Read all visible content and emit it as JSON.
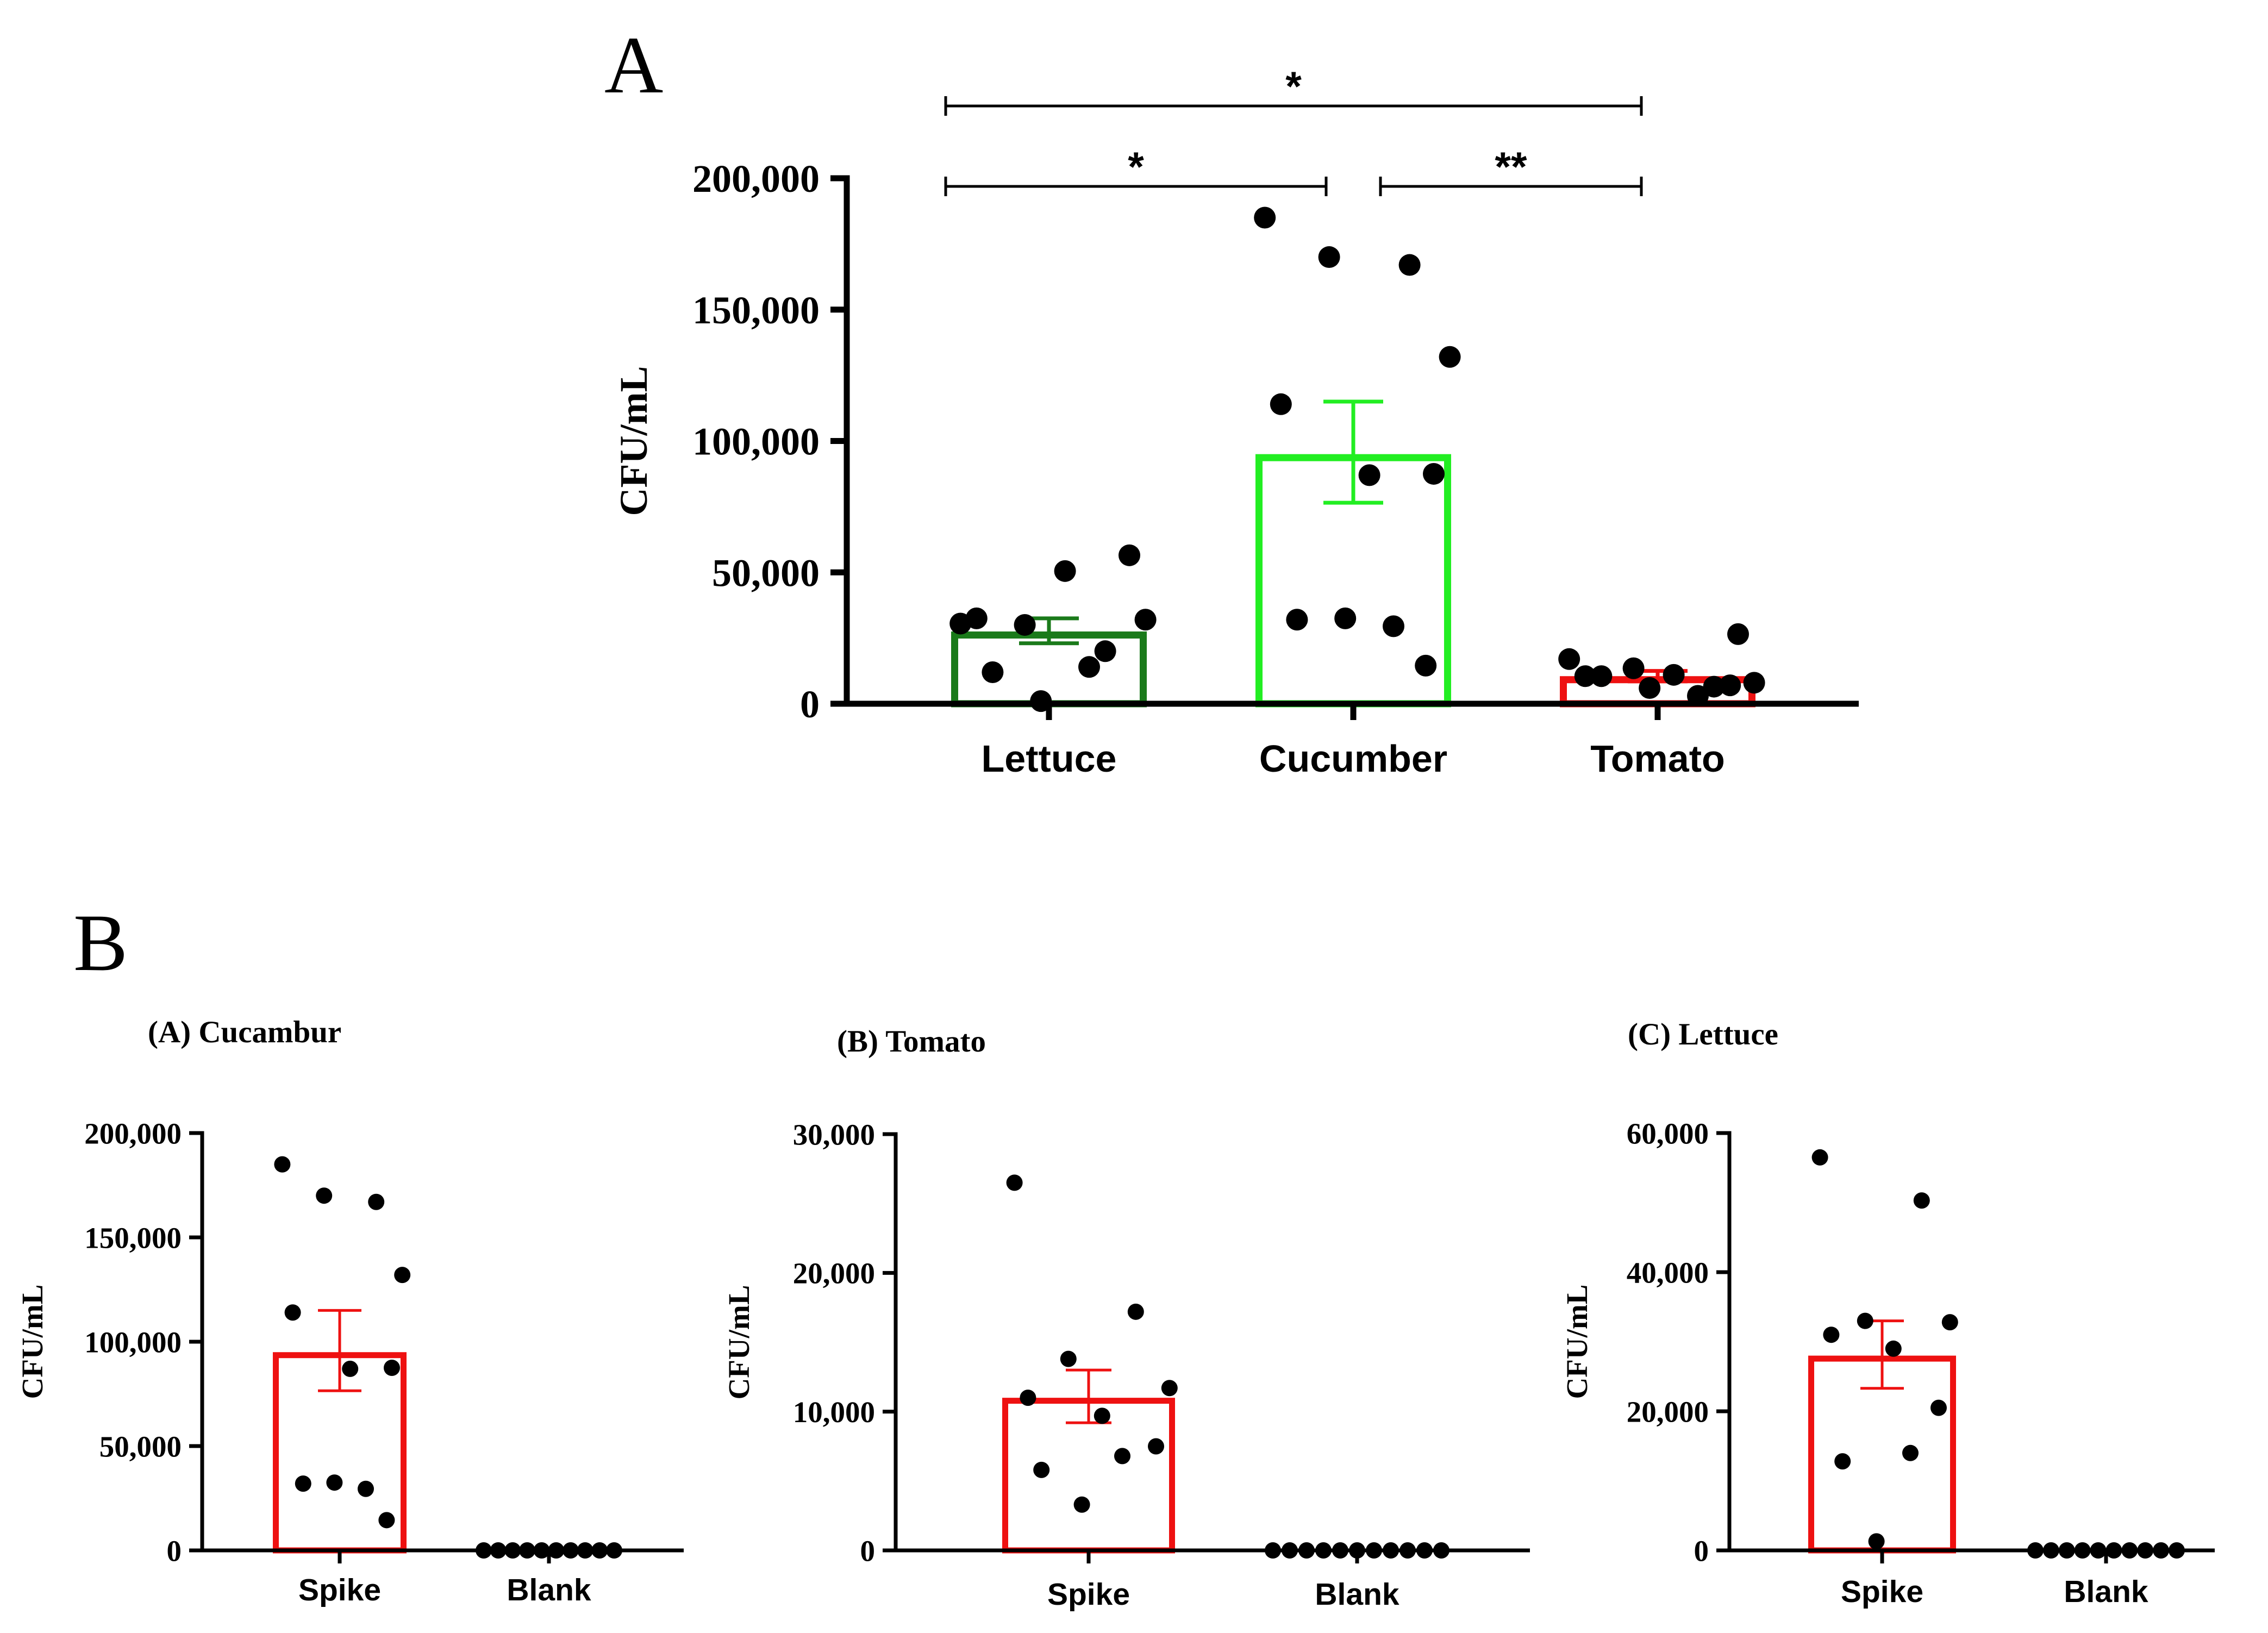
{
  "panel_letters": {
    "top": "A",
    "bottom": "B"
  },
  "chart_data": [
    {
      "id": "panelA",
      "type": "bar",
      "title": "",
      "ylabel": "CFU/mL",
      "xlabel": "",
      "ylim": [
        0,
        200000
      ],
      "yticks": [
        0,
        50000,
        100000,
        150000,
        200000
      ],
      "ytick_labels": [
        "0",
        "50,000",
        "100,000",
        "150,000",
        "200,000"
      ],
      "categories": [
        "Lettuce",
        "Cucumber",
        "Tomato"
      ],
      "bar_colors": [
        "#1a7a1a",
        "#22ee22",
        "#ee1111"
      ],
      "values": [
        27500,
        95000,
        10500
      ],
      "error_low": [
        23000,
        76500,
        8500
      ],
      "error_high": [
        32500,
        115000,
        12500
      ],
      "points": [
        [
          30500,
          20000,
          30000,
          32000,
          32500,
          50500,
          56500,
          12000,
          14000,
          1000
        ],
        [
          185000,
          167000,
          170000,
          132000,
          114000,
          87000,
          87500,
          32000,
          29500,
          32500,
          14500
        ],
        [
          17000,
          6500,
          13500,
          8000,
          10500,
          11000,
          26500,
          10500,
          3000,
          6000,
          7000
        ]
      ],
      "significance": [
        {
          "from": 0,
          "to": 2,
          "label": "*"
        },
        {
          "from": 0,
          "to": 1,
          "label": "*"
        },
        {
          "from": 1,
          "to": 2,
          "label": "**"
        }
      ]
    },
    {
      "id": "panelB1",
      "type": "bar",
      "title": "(A) Cucambur",
      "ylabel": "CFU/mL",
      "xlabel": "",
      "ylim": [
        0,
        200000
      ],
      "yticks": [
        0,
        50000,
        100000,
        150000,
        200000
      ],
      "ytick_labels": [
        "0",
        "50,000",
        "100,000",
        "150,000",
        "200,000"
      ],
      "categories": [
        "Spike",
        "Blank"
      ],
      "bar_colors": [
        "#ee1111",
        "#ee1111"
      ],
      "values": [
        95000,
        0
      ],
      "error_low": [
        76500,
        0
      ],
      "error_high": [
        115000,
        0
      ],
      "points": [
        [
          185000,
          167000,
          170000,
          132000,
          114000,
          87000,
          87500,
          32000,
          29500,
          32500,
          14500
        ],
        [
          0,
          0,
          0,
          0,
          0,
          0,
          0,
          0,
          0,
          0
        ]
      ]
    },
    {
      "id": "panelB2",
      "type": "bar",
      "title": "(B) Tomato",
      "ylabel": "CFU/mL",
      "xlabel": "",
      "ylim": [
        0,
        30000
      ],
      "yticks": [
        0,
        10000,
        20000,
        30000
      ],
      "ytick_labels": [
        "0",
        "10,000",
        "20,000",
        "30,000"
      ],
      "categories": [
        "Spike",
        "Blank"
      ],
      "bar_colors": [
        "#ee1111",
        "#ee1111"
      ],
      "values": [
        11000,
        0
      ],
      "error_low": [
        9200,
        0
      ],
      "error_high": [
        13000,
        0
      ],
      "points": [
        [
          26500,
          17200,
          13800,
          11700,
          11000,
          9700,
          7500,
          5800,
          6800,
          3300
        ],
        [
          0,
          0,
          0,
          0,
          0,
          0,
          0,
          0,
          0,
          0,
          0
        ]
      ]
    },
    {
      "id": "panelB3",
      "type": "bar",
      "title": "(C) Lettuce",
      "ylabel": "CFU/mL",
      "xlabel": "",
      "ylim": [
        0,
        60000
      ],
      "yticks": [
        0,
        20000,
        40000,
        60000
      ],
      "ytick_labels": [
        "0",
        "20,000",
        "40,000",
        "60,000"
      ],
      "categories": [
        "Spike",
        "Blank"
      ],
      "bar_colors": [
        "#ee1111",
        "#ee1111"
      ],
      "values": [
        28000,
        0
      ],
      "error_low": [
        23300,
        0
      ],
      "error_high": [
        33000,
        0
      ],
      "points": [
        [
          56500,
          50300,
          33000,
          32800,
          31000,
          29000,
          20500,
          12800,
          14000,
          1300
        ],
        [
          0,
          0,
          0,
          0,
          0,
          0,
          0,
          0,
          0,
          0
        ]
      ]
    }
  ]
}
